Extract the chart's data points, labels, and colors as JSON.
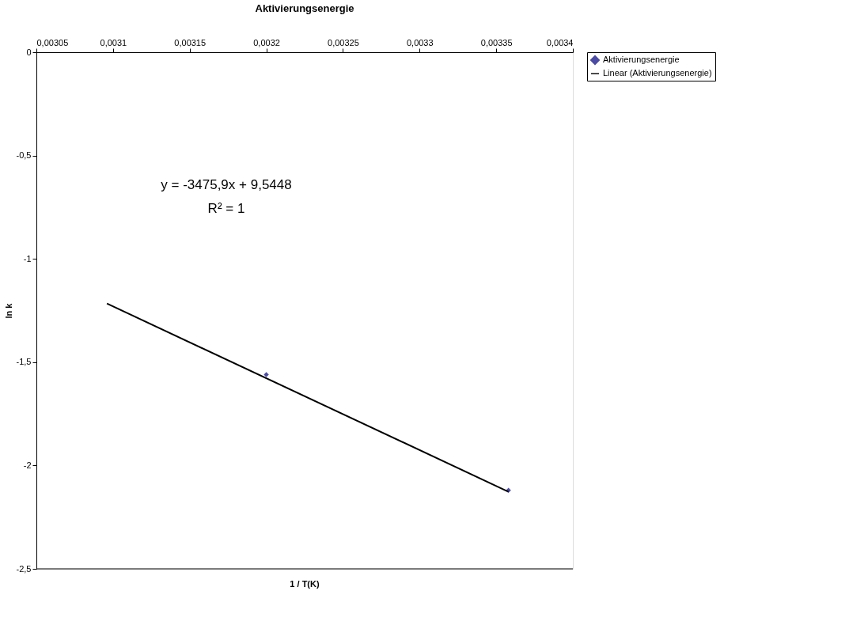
{
  "chart_data": {
    "type": "scatter",
    "title": "Aktivierungsenergie",
    "xlabel": "1 / T(K)",
    "ylabel": "ln k",
    "xlim": [
      0.00305,
      0.0034
    ],
    "ylim": [
      -2.5,
      0
    ],
    "xticks": [
      {
        "value": 0.00305,
        "label": "0,00305"
      },
      {
        "value": 0.0031,
        "label": "0,0031"
      },
      {
        "value": 0.00315,
        "label": "0,00315"
      },
      {
        "value": 0.0032,
        "label": "0,0032"
      },
      {
        "value": 0.00325,
        "label": "0,00325"
      },
      {
        "value": 0.0033,
        "label": "0,0033"
      },
      {
        "value": 0.00335,
        "label": "0,00335"
      },
      {
        "value": 0.0034,
        "label": "0,0034"
      }
    ],
    "yticks": [
      {
        "value": 0,
        "label": "0"
      },
      {
        "value": -0.5,
        "label": "-0,5"
      },
      {
        "value": -1,
        "label": "-1"
      },
      {
        "value": -1.5,
        "label": "-1,5"
      },
      {
        "value": -2,
        "label": "-2"
      },
      {
        "value": -2.5,
        "label": "-2,5"
      }
    ],
    "series": [
      {
        "name": "Aktivierungsenergie",
        "color": "#000080",
        "marker": "diamond",
        "x": [
          0.0032,
          0.003358
        ],
        "values": [
          -1.56,
          -2.12
        ]
      },
      {
        "name": "Linear (Aktivierungsenergie)",
        "type": "line",
        "color": "#000000",
        "line_style": "solid",
        "x": [
          0.003096,
          0.003358
        ],
        "values": [
          -1.216,
          -2.127
        ]
      }
    ],
    "annotations": [
      "y = -3475,9x + 9,5448",
      "R² = 1"
    ],
    "grid": false,
    "legend": "right"
  }
}
